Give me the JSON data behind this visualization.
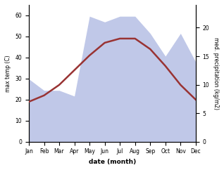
{
  "months": [
    "Jan",
    "Feb",
    "Mar",
    "Apr",
    "May",
    "Jun",
    "Jul",
    "Aug",
    "Sep",
    "Oct",
    "Nov",
    "Dec"
  ],
  "temp": [
    19,
    22,
    27,
    34,
    41,
    47,
    49,
    49,
    44,
    36,
    27,
    20
  ],
  "precip": [
    11,
    9,
    9,
    8,
    22,
    21,
    22,
    22,
    19,
    15,
    19,
    14
  ],
  "temp_color": "#993333",
  "precip_fill_color": "#c0c8e8",
  "ylabel_left": "max temp (C)",
  "ylabel_right": "med. precipitation (kg/m2)",
  "xlabel": "date (month)",
  "ylim_left": [
    0,
    65
  ],
  "ylim_right": [
    0,
    24
  ],
  "yticks_left": [
    0,
    10,
    20,
    30,
    40,
    50,
    60
  ],
  "yticks_right": [
    0,
    5,
    10,
    15,
    20
  ]
}
